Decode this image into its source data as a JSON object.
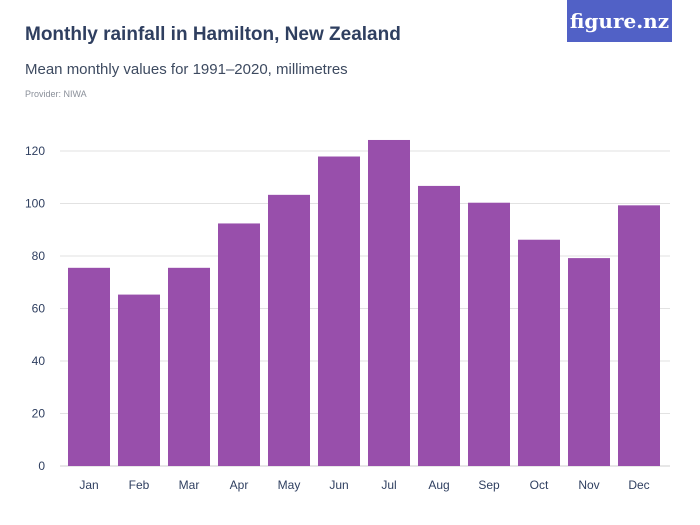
{
  "title": "Monthly rainfall in Hamilton, New Zealand",
  "subtitle": "Mean monthly values for 1991–2020, millimetres",
  "provider": "Provider: NIWA",
  "logo": "figure.nz",
  "colors": {
    "bar": "#984fab",
    "logo_bg": "#5161c6",
    "grid": "#e2e2e2"
  },
  "chart_data": {
    "type": "bar",
    "title": "Monthly rainfall in Hamilton, New Zealand",
    "subtitle": "Mean monthly values for 1991–2020, millimetres",
    "categories": [
      "Jan",
      "Feb",
      "Mar",
      "Apr",
      "May",
      "Jun",
      "Jul",
      "Aug",
      "Sep",
      "Oct",
      "Nov",
      "Dec"
    ],
    "values": [
      75.5,
      65.3,
      75.5,
      92.4,
      103.3,
      117.9,
      124.2,
      106.7,
      100.3,
      86.2,
      79.2,
      99.3
    ],
    "ylim": [
      0,
      120
    ],
    "yticks": [
      0,
      20,
      40,
      60,
      80,
      100,
      120
    ],
    "grid": true,
    "xlabel": "",
    "ylabel": ""
  }
}
